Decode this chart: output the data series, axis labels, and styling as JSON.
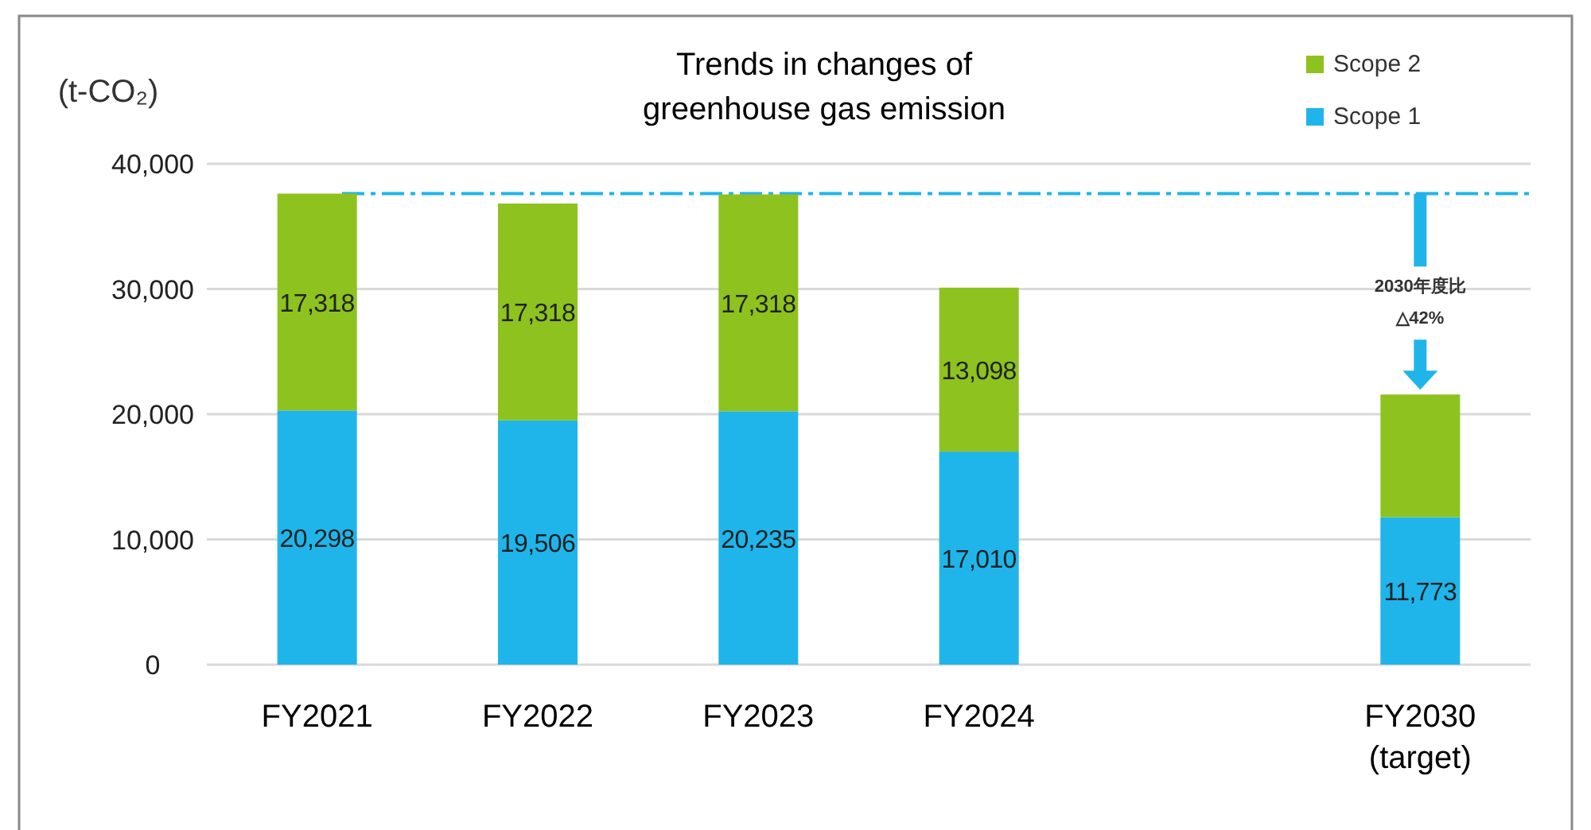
{
  "chart_data": {
    "type": "bar",
    "title": "Trends in changes of greenhouse gas emission",
    "ylabel": "(t-CO₂)",
    "categories": [
      "FY2021",
      "FY2022",
      "FY2023",
      "FY2024",
      null,
      "FY2030 (target)"
    ],
    "stacked": true,
    "series": [
      {
        "name": "Scope 1",
        "color": "#1fb5ea",
        "values": [
          20298,
          19506,
          20235,
          17010,
          null,
          11773
        ],
        "value_labels": [
          "20,298",
          "19,506",
          "20,235",
          "17,010",
          null,
          "11,773"
        ]
      },
      {
        "name": "Scope 2",
        "color": "#8dc21f",
        "values": [
          17318,
          17318,
          17318,
          13098,
          null,
          9800
        ],
        "value_labels": [
          "17,318",
          "17,318",
          "17,318",
          "13,098",
          null,
          null
        ]
      }
    ],
    "ylim": [
      0,
      40000
    ],
    "yticks": [
      {
        "value": 0,
        "label": "0"
      },
      {
        "value": 10000,
        "label": "10,000"
      },
      {
        "value": 20000,
        "label": "20,000"
      },
      {
        "value": 30000,
        "label": "30,000"
      },
      {
        "value": 40000,
        "label": "40,000"
      }
    ],
    "grid": "y",
    "legend": "top right",
    "ref_lines": [
      {
        "axis": "y",
        "value": 37616,
        "color": "#1fb5ea",
        "line_style": "dashed"
      }
    ],
    "annotations": [
      "2030年度比 △42%"
    ]
  }
}
